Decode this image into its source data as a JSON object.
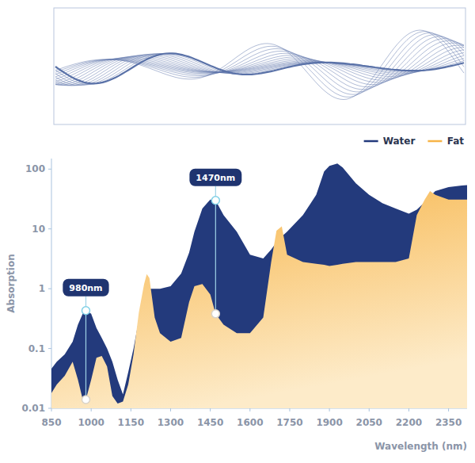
{
  "chart_data": {
    "type": "area",
    "x_label": "Wavelength (nm)",
    "y_label": "Absorption",
    "log": "y",
    "grid": false,
    "legend": "top right",
    "xlim": [
      850,
      2420
    ],
    "xticks": [
      850,
      1000,
      1150,
      1300,
      1450,
      1600,
      1750,
      1900,
      2050,
      2200,
      2350
    ],
    "ylim": [
      0.01,
      150
    ],
    "yticks": [
      0.01,
      0.1,
      1,
      10,
      100
    ],
    "x": [
      850,
      870,
      900,
      930,
      950,
      970,
      980,
      1000,
      1020,
      1040,
      1060,
      1080,
      1100,
      1120,
      1140,
      1160,
      1180,
      1200,
      1210,
      1220,
      1240,
      1260,
      1300,
      1340,
      1370,
      1390,
      1420,
      1450,
      1470,
      1500,
      1550,
      1600,
      1650,
      1680,
      1700,
      1720,
      1740,
      1800,
      1850,
      1880,
      1900,
      1930,
      1950,
      2000,
      2050,
      2100,
      2150,
      2200,
      2230,
      2260,
      2280,
      2300,
      2350,
      2400,
      2420
    ],
    "series": [
      {
        "name": "Water",
        "color": "#233a7c",
        "values": [
          0.046,
          0.06,
          0.08,
          0.13,
          0.25,
          0.4,
          0.43,
          0.38,
          0.22,
          0.15,
          0.1,
          0.06,
          0.03,
          0.017,
          0.04,
          0.1,
          0.3,
          0.9,
          0.95,
          1.0,
          1.0,
          1.0,
          1.1,
          1.8,
          4,
          9,
          22,
          31,
          30,
          17,
          9,
          3.7,
          3.2,
          4.5,
          6,
          7.5,
          9,
          17,
          37,
          91,
          113,
          124,
          106,
          58,
          37,
          27,
          22,
          18,
          21,
          28,
          35,
          43,
          50,
          53,
          54
        ]
      },
      {
        "name": "Fat",
        "color": "#f7b447",
        "values": [
          0.018,
          0.025,
          0.035,
          0.06,
          0.03,
          0.013,
          0.014,
          0.03,
          0.07,
          0.075,
          0.05,
          0.016,
          0.012,
          0.013,
          0.025,
          0.08,
          0.4,
          1.2,
          1.75,
          1.5,
          0.33,
          0.18,
          0.13,
          0.15,
          0.6,
          1.1,
          1.2,
          0.8,
          0.38,
          0.25,
          0.18,
          0.18,
          0.33,
          2.8,
          9.3,
          11,
          3.7,
          2.8,
          2.6,
          2.5,
          2.4,
          2.5,
          2.6,
          2.8,
          2.8,
          2.8,
          2.8,
          3.2,
          17,
          31,
          43,
          37,
          31,
          31,
          31
        ]
      }
    ],
    "annotations": [
      {
        "text": "980nm",
        "x": 980,
        "values": [
          0.43,
          0.014
        ]
      },
      {
        "text": "1470nm",
        "x": 1470,
        "values": [
          30,
          0.38
        ]
      }
    ]
  }
}
